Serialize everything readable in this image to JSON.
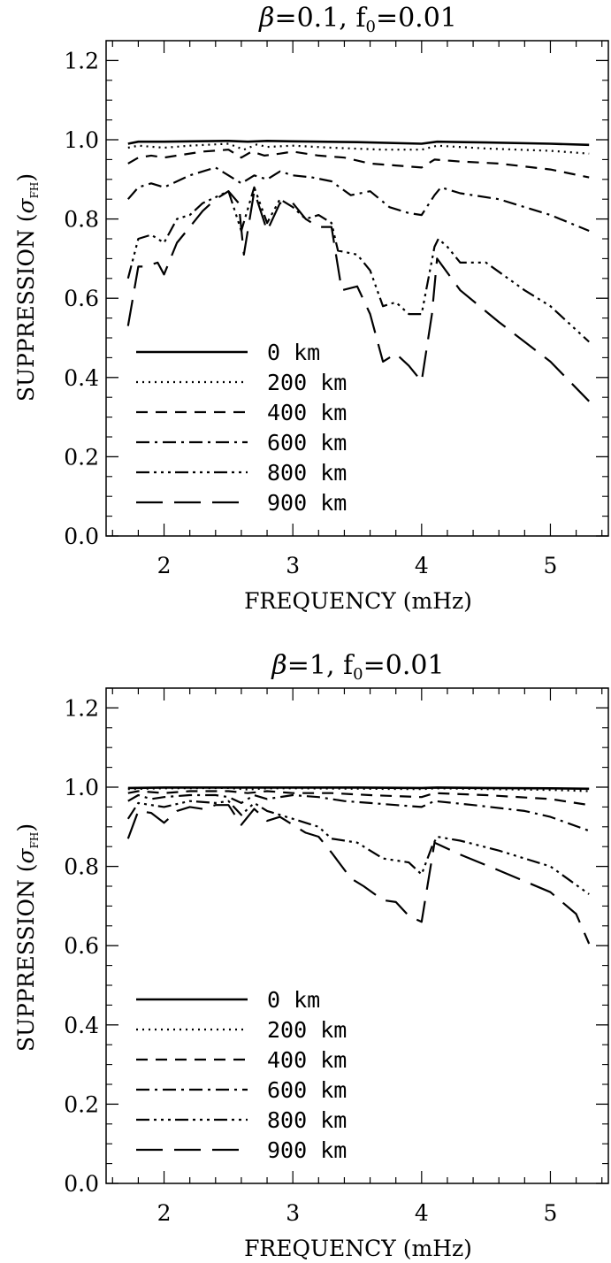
{
  "chart_data": [
    {
      "type": "line",
      "title": "β=0.1,  f₀=0.01",
      "title_symbol": "β",
      "title_mid": "=0.1,  f",
      "title_sub": "0",
      "title_tail": "=0.01",
      "xlabel": "FREQUENCY (mHz)",
      "ylabel_main": "SUPPRESSION (",
      "ylabel_symbol": "σ",
      "ylabel_sub": "FH",
      "ylabel_close": ")",
      "xlim": [
        1.55,
        5.45
      ],
      "ylim": [
        0.0,
        1.25
      ],
      "xticks": [
        2,
        3,
        4,
        5
      ],
      "xtick_labels": [
        "2",
        "3",
        "4",
        "5"
      ],
      "yticks": [
        0.0,
        0.2,
        0.4,
        0.6,
        0.8,
        1.0,
        1.2
      ],
      "ytick_labels": [
        "0.0",
        "0.2",
        "0.4",
        "0.6",
        "0.8",
        "1.0",
        "1.2"
      ],
      "grid": false,
      "legend_position": "bottom-left",
      "series": [
        {
          "name": "0 km",
          "line_style": "solid",
          "x": [
            1.72,
            1.8,
            2.0,
            2.5,
            2.65,
            2.8,
            3.0,
            3.5,
            4.0,
            4.12,
            4.5,
            5.0,
            5.3
          ],
          "values": [
            0.99,
            0.995,
            0.995,
            0.997,
            0.995,
            0.997,
            0.996,
            0.994,
            0.99,
            0.995,
            0.993,
            0.99,
            0.987
          ]
        },
        {
          "name": "200 km",
          "line_style": "dotted",
          "x": [
            1.72,
            1.8,
            2.0,
            2.2,
            2.5,
            2.62,
            2.72,
            2.8,
            3.0,
            3.3,
            3.7,
            4.0,
            4.12,
            4.5,
            5.0,
            5.3
          ],
          "values": [
            0.98,
            0.985,
            0.98,
            0.985,
            0.99,
            0.975,
            0.988,
            0.982,
            0.985,
            0.98,
            0.975,
            0.975,
            0.985,
            0.978,
            0.972,
            0.965
          ]
        },
        {
          "name": "400 km",
          "line_style": "dashed",
          "x": [
            1.72,
            1.8,
            1.9,
            2.0,
            2.1,
            2.3,
            2.5,
            2.6,
            2.68,
            2.78,
            2.9,
            3.0,
            3.2,
            3.4,
            3.6,
            3.8,
            4.0,
            4.1,
            4.3,
            4.6,
            5.0,
            5.3
          ],
          "values": [
            0.94,
            0.955,
            0.96,
            0.955,
            0.96,
            0.97,
            0.975,
            0.955,
            0.97,
            0.96,
            0.965,
            0.97,
            0.96,
            0.955,
            0.94,
            0.935,
            0.93,
            0.95,
            0.945,
            0.94,
            0.925,
            0.905
          ]
        },
        {
          "name": "600 km",
          "line_style": "dashdot",
          "x": [
            1.72,
            1.8,
            1.9,
            2.0,
            2.2,
            2.4,
            2.5,
            2.6,
            2.7,
            2.8,
            2.9,
            3.0,
            3.15,
            3.3,
            3.45,
            3.6,
            3.75,
            3.9,
            4.0,
            4.1,
            4.15,
            4.3,
            4.6,
            5.0,
            5.3
          ],
          "values": [
            0.85,
            0.88,
            0.89,
            0.88,
            0.91,
            0.93,
            0.91,
            0.89,
            0.91,
            0.9,
            0.92,
            0.91,
            0.905,
            0.895,
            0.86,
            0.87,
            0.83,
            0.815,
            0.81,
            0.86,
            0.88,
            0.865,
            0.85,
            0.81,
            0.77
          ]
        },
        {
          "name": "800 km",
          "line_style": "dashdotdotdot",
          "x": [
            1.72,
            1.8,
            1.9,
            2.0,
            2.1,
            2.2,
            2.3,
            2.5,
            2.6,
            2.7,
            2.8,
            2.9,
            3.0,
            3.1,
            3.2,
            3.3,
            3.35,
            3.5,
            3.6,
            3.7,
            3.8,
            3.9,
            4.0,
            4.1,
            4.13,
            4.2,
            4.3,
            4.5,
            4.8,
            5.0,
            5.3
          ],
          "values": [
            0.65,
            0.75,
            0.76,
            0.74,
            0.8,
            0.81,
            0.84,
            0.87,
            0.77,
            0.88,
            0.79,
            0.85,
            0.83,
            0.8,
            0.81,
            0.79,
            0.72,
            0.71,
            0.67,
            0.58,
            0.59,
            0.56,
            0.56,
            0.73,
            0.75,
            0.73,
            0.69,
            0.69,
            0.62,
            0.58,
            0.49
          ]
        },
        {
          "name": "900 km",
          "line_style": "longdash",
          "x": [
            1.72,
            1.8,
            1.85,
            1.95,
            2.0,
            2.1,
            2.2,
            2.3,
            2.4,
            2.5,
            2.58,
            2.62,
            2.7,
            2.8,
            2.9,
            3.0,
            3.1,
            3.2,
            3.3,
            3.38,
            3.5,
            3.6,
            3.7,
            3.8,
            3.9,
            4.0,
            4.08,
            4.12,
            4.3,
            4.6,
            5.0,
            5.3
          ],
          "values": [
            0.53,
            0.68,
            0.68,
            0.69,
            0.66,
            0.74,
            0.78,
            0.82,
            0.85,
            0.87,
            0.84,
            0.71,
            0.87,
            0.77,
            0.84,
            0.84,
            0.8,
            0.78,
            0.78,
            0.62,
            0.63,
            0.56,
            0.44,
            0.46,
            0.43,
            0.39,
            0.56,
            0.7,
            0.62,
            0.54,
            0.44,
            0.34
          ]
        }
      ]
    },
    {
      "type": "line",
      "title": "β=1,  f₀=0.01",
      "title_symbol": "β",
      "title_mid": "=1,  f",
      "title_sub": "0",
      "title_tail": "=0.01",
      "xlabel": "FREQUENCY (mHz)",
      "ylabel_main": "SUPPRESSION (",
      "ylabel_symbol": "σ",
      "ylabel_sub": "FH",
      "ylabel_close": ")",
      "xlim": [
        1.55,
        5.45
      ],
      "ylim": [
        0.0,
        1.25
      ],
      "xticks": [
        2,
        3,
        4,
        5
      ],
      "xtick_labels": [
        "2",
        "3",
        "4",
        "5"
      ],
      "yticks": [
        0.0,
        0.2,
        0.4,
        0.6,
        0.8,
        1.0,
        1.2
      ],
      "ytick_labels": [
        "0.0",
        "0.2",
        "0.4",
        "0.6",
        "0.8",
        "1.0",
        "1.2"
      ],
      "grid": false,
      "legend_position": "bottom-left",
      "series": [
        {
          "name": "0 km",
          "line_style": "solid",
          "x": [
            1.72,
            2.0,
            2.5,
            3.0,
            3.5,
            4.0,
            4.12,
            4.5,
            5.0,
            5.3
          ],
          "values": [
            0.998,
            0.999,
            0.999,
            0.999,
            0.999,
            0.998,
            0.999,
            0.998,
            0.997,
            0.996
          ]
        },
        {
          "name": "200 km",
          "line_style": "dotted",
          "x": [
            1.72,
            2.0,
            2.5,
            2.65,
            2.8,
            3.0,
            3.5,
            4.0,
            4.12,
            4.5,
            5.0,
            5.3
          ],
          "values": [
            0.995,
            0.997,
            0.998,
            0.994,
            0.997,
            0.997,
            0.996,
            0.995,
            0.997,
            0.995,
            0.993,
            0.99
          ]
        },
        {
          "name": "400 km",
          "line_style": "dashed",
          "x": [
            1.72,
            1.8,
            2.0,
            2.2,
            2.5,
            2.65,
            2.8,
            3.0,
            3.3,
            3.6,
            4.0,
            4.1,
            4.5,
            5.0,
            5.3
          ],
          "values": [
            0.985,
            0.99,
            0.985,
            0.99,
            0.99,
            0.985,
            0.99,
            0.985,
            0.985,
            0.98,
            0.975,
            0.985,
            0.98,
            0.97,
            0.955
          ]
        },
        {
          "name": "600 km",
          "line_style": "dashdot",
          "x": [
            1.72,
            1.8,
            1.9,
            2.0,
            2.2,
            2.4,
            2.5,
            2.6,
            2.7,
            2.8,
            3.0,
            3.2,
            3.4,
            3.6,
            3.8,
            4.0,
            4.1,
            4.4,
            4.8,
            5.0,
            5.3
          ],
          "values": [
            0.965,
            0.98,
            0.97,
            0.975,
            0.98,
            0.98,
            0.975,
            0.96,
            0.98,
            0.97,
            0.98,
            0.975,
            0.965,
            0.96,
            0.955,
            0.95,
            0.965,
            0.955,
            0.94,
            0.925,
            0.89
          ]
        },
        {
          "name": "800 km",
          "line_style": "dashdotdotdot",
          "x": [
            1.72,
            1.8,
            1.9,
            2.0,
            2.2,
            2.4,
            2.5,
            2.6,
            2.7,
            2.8,
            3.0,
            3.2,
            3.3,
            3.5,
            3.7,
            3.9,
            4.0,
            4.08,
            4.12,
            4.3,
            4.6,
            5.0,
            5.3
          ],
          "values": [
            0.92,
            0.96,
            0.955,
            0.95,
            0.965,
            0.96,
            0.965,
            0.93,
            0.96,
            0.94,
            0.92,
            0.9,
            0.87,
            0.86,
            0.82,
            0.81,
            0.78,
            0.85,
            0.875,
            0.865,
            0.84,
            0.8,
            0.73
          ]
        },
        {
          "name": "900 km",
          "line_style": "longdash",
          "x": [
            1.72,
            1.8,
            1.9,
            2.0,
            2.1,
            2.2,
            2.3,
            2.4,
            2.5,
            2.6,
            2.7,
            2.8,
            2.9,
            3.0,
            3.1,
            3.2,
            3.3,
            3.45,
            3.55,
            3.7,
            3.8,
            3.9,
            4.0,
            4.1,
            4.3,
            4.6,
            5.0,
            5.2,
            5.3
          ],
          "values": [
            0.87,
            0.94,
            0.935,
            0.91,
            0.94,
            0.95,
            0.945,
            0.955,
            0.955,
            0.905,
            0.945,
            0.915,
            0.925,
            0.905,
            0.885,
            0.875,
            0.835,
            0.77,
            0.75,
            0.715,
            0.71,
            0.675,
            0.66,
            0.86,
            0.83,
            0.79,
            0.735,
            0.68,
            0.605
          ]
        }
      ]
    }
  ]
}
